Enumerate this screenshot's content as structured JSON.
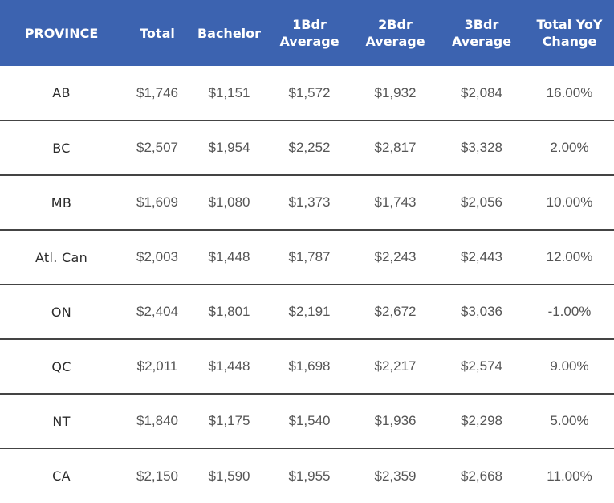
{
  "table": {
    "headers": [
      {
        "lines": [
          "PROVINCE"
        ]
      },
      {
        "lines": [
          "Total"
        ]
      },
      {
        "lines": [
          "Bachelor"
        ]
      },
      {
        "lines": [
          "1Bdr",
          "Average"
        ]
      },
      {
        "lines": [
          "2Bdr",
          "Average"
        ]
      },
      {
        "lines": [
          "3Bdr",
          "Average"
        ]
      },
      {
        "lines": [
          "Total YoY",
          "Change"
        ]
      }
    ],
    "rows": [
      [
        "AB",
        "$1,746",
        "$1,151",
        "$1,572",
        "$1,932",
        "$2,084",
        "16.00%"
      ],
      [
        "BC",
        "$2,507",
        "$1,954",
        "$2,252",
        "$2,817",
        "$3,328",
        "2.00%"
      ],
      [
        "MB",
        "$1,609",
        "$1,080",
        "$1,373",
        "$1,743",
        "$2,056",
        "10.00%"
      ],
      [
        "Atl. Can",
        "$2,003",
        "$1,448",
        "$1,787",
        "$2,243",
        "$2,443",
        "12.00%"
      ],
      [
        "ON",
        "$2,404",
        "$1,801",
        "$2,191",
        "$2,672",
        "$3,036",
        "-1.00%"
      ],
      [
        "QC",
        "$2,011",
        "$1,448",
        "$1,698",
        "$2,217",
        "$2,574",
        "9.00%"
      ],
      [
        "NT",
        "$1,840",
        "$1,175",
        "$1,540",
        "$1,936",
        "$2,298",
        "5.00%"
      ],
      [
        "CA",
        "$2,150",
        "$1,590",
        "$1,955",
        "$2,359",
        "$2,668",
        "11.00%"
      ]
    ]
  },
  "colors": {
    "header_bg": "#3c63b0",
    "header_text": "#ffffff",
    "row_divider": "#444444",
    "cell_text": "#555555"
  }
}
